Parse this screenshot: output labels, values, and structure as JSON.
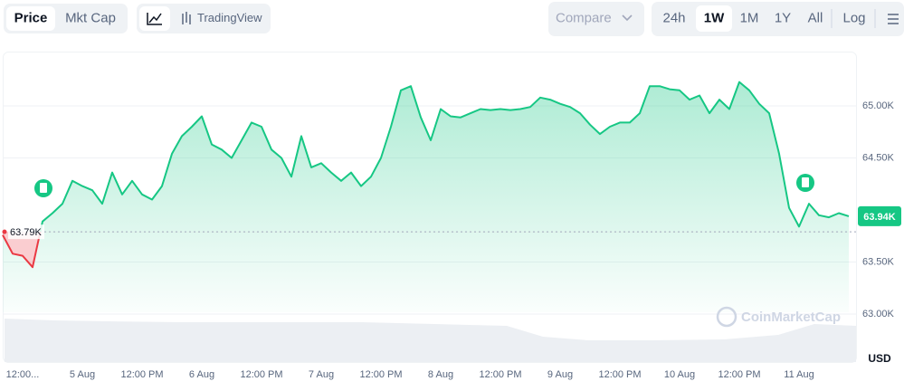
{
  "toolbar": {
    "tabs": [
      "Price",
      "Mkt Cap"
    ],
    "tradingview": "TradingView",
    "compare": "Compare",
    "ranges": [
      "24h",
      "1W",
      "1M",
      "1Y",
      "All"
    ],
    "active_range": "1W",
    "log": "Log"
  },
  "chart_data": {
    "type": "line",
    "categories": [
      null,
      null,
      "12:00...",
      null,
      null,
      null,
      null,
      null,
      "5 Aug",
      null,
      null,
      null,
      null,
      null,
      "12:00 PM",
      null,
      null,
      null,
      null,
      null,
      "6 Aug",
      null,
      null,
      null,
      null,
      null,
      "12:00 PM",
      null,
      null,
      null,
      null,
      null,
      "7 Aug",
      null,
      null,
      null,
      null,
      null,
      "12:00 PM",
      null,
      null,
      null,
      null,
      null,
      "8 Aug",
      null,
      null,
      null,
      null,
      null,
      "12:00 PM",
      null,
      null,
      null,
      null,
      null,
      "9 Aug",
      null,
      null,
      null,
      null,
      null,
      "12:00 PM",
      null,
      null,
      null,
      null,
      null,
      "10 Aug",
      null,
      null,
      null,
      null,
      null,
      "12:00 PM",
      null,
      null,
      null,
      null,
      null,
      "11 Aug",
      null,
      null,
      null,
      null,
      null
    ],
    "series": [
      {
        "color": "#16c784",
        "values": [
          63760,
          63580,
          63560,
          63450,
          63890,
          63970,
          64060,
          64280,
          64230,
          64190,
          64060,
          64360,
          64150,
          64280,
          64150,
          64100,
          64230,
          64540,
          64710,
          64800,
          64900,
          64630,
          64580,
          64500,
          64670,
          64840,
          64800,
          64580,
          64500,
          64320,
          64710,
          64410,
          64450,
          64360,
          64280,
          64360,
          64230,
          64320,
          64500,
          64800,
          65150,
          65190,
          64890,
          64670,
          64970,
          64900,
          64890,
          64930,
          64970,
          64960,
          64970,
          64960,
          64970,
          64990,
          65080,
          65060,
          65020,
          64990,
          64930,
          64820,
          64730,
          64800,
          64840,
          64840,
          64930,
          65190,
          65190,
          65160,
          65150,
          65060,
          65100,
          64930,
          65060,
          64970,
          65230,
          65150,
          65020,
          64930,
          64540,
          64020,
          63840,
          64060,
          63950,
          63930,
          63970,
          63940
        ]
      }
    ],
    "down_color": "#ea3943",
    "ylim": [
      62539,
      65522
    ],
    "yticks": [
      {
        "value": 63000,
        "label": "63.00K"
      },
      {
        "value": 63500,
        "label": "63.50K"
      },
      {
        "value": 64500,
        "label": "64.50K"
      },
      {
        "value": 65000,
        "label": "65.00K"
      }
    ],
    "reference": {
      "value": 63790,
      "label": "63.79K"
    },
    "last": {
      "value": 63940,
      "label": "63.94K"
    },
    "currency": "USD",
    "watermark": "CoinMarketCap"
  }
}
